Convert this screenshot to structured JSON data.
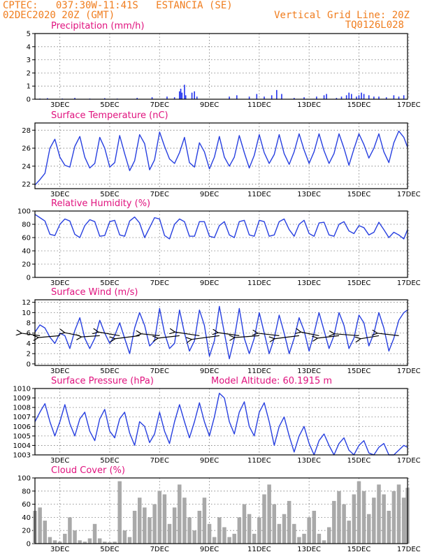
{
  "header": {
    "line1": "CPTEC:   037:30W-11:41S   ESTANCIA (SE)",
    "line2": "02DEC2020 20Z (GMT)",
    "right1": "Vertical Grid Line: 20Z",
    "right2": "TQ0126L028"
  },
  "colors": {
    "header": "#f07d1e",
    "title": "#e0127e",
    "line": "#2840e0",
    "cloud": "#a9a9a9",
    "bar": "#2233ee"
  },
  "chart_data": [
    {
      "type": "bar",
      "id": "precip",
      "title": "Precipitation (mm/h)",
      "ylim": [
        0,
        5
      ],
      "yticks": [
        0,
        1,
        2,
        3,
        4,
        5
      ],
      "xticks": [
        "3DEC",
        "5DEC",
        "7DEC",
        "9DEC",
        "11DEC",
        "13DEC",
        "15DEC",
        "17DEC"
      ],
      "x_unit": "day (DEC 2020)",
      "xlim": [
        2.0,
        16.95
      ],
      "x": [
        2.2,
        2.5,
        3.1,
        3.6,
        4.2,
        4.8,
        5.3,
        6.1,
        6.7,
        7.3,
        7.6,
        7.8,
        7.85,
        7.9,
        8.0,
        8.05,
        8.3,
        8.4,
        8.5,
        9.8,
        10.1,
        10.6,
        10.9,
        11.2,
        11.5,
        11.7,
        11.9,
        12.4,
        12.8,
        13.3,
        13.6,
        13.7,
        14.1,
        14.3,
        14.5,
        14.6,
        14.7,
        14.9,
        15.0,
        15.1,
        15.2,
        15.4,
        15.6,
        15.8,
        16.1,
        16.4,
        16.6,
        16.8
      ],
      "values": [
        0.05,
        0.08,
        0.05,
        0.1,
        0.05,
        0.08,
        0.05,
        0.1,
        0.15,
        0.2,
        0.15,
        0.6,
        0.8,
        0.5,
        1.1,
        0.3,
        0.5,
        0.6,
        0.2,
        0.2,
        0.3,
        0.2,
        0.4,
        0.2,
        0.3,
        0.7,
        0.4,
        0.1,
        0.15,
        0.2,
        0.3,
        0.4,
        0.1,
        0.2,
        0.3,
        0.5,
        0.4,
        0.2,
        0.3,
        0.5,
        0.4,
        0.3,
        0.2,
        0.2,
        0.15,
        0.3,
        0.2,
        0.3
      ]
    },
    {
      "type": "line",
      "id": "temp",
      "title": "Surface Temperature (nC)",
      "ylim": [
        21.5,
        28.8
      ],
      "yticks": [
        22,
        24,
        26,
        28
      ],
      "xticks": [
        "3DEC",
        "5DEC",
        "7DEC",
        "9DEC",
        "11DEC",
        "13DEC",
        "15DEC",
        "17DEC"
      ],
      "x_unit": "day (DEC 2020)",
      "xlim": [
        2.0,
        16.95
      ],
      "x": [
        2.0,
        2.2,
        2.4,
        2.6,
        2.8,
        3.0,
        3.2,
        3.4,
        3.6,
        3.8,
        4.0,
        4.2,
        4.4,
        4.6,
        4.8,
        5.0,
        5.2,
        5.4,
        5.6,
        5.8,
        6.0,
        6.2,
        6.4,
        6.6,
        6.8,
        7.0,
        7.2,
        7.4,
        7.6,
        7.8,
        8.0,
        8.2,
        8.4,
        8.6,
        8.8,
        9.0,
        9.2,
        9.4,
        9.6,
        9.8,
        10.0,
        10.2,
        10.4,
        10.6,
        10.8,
        11.0,
        11.2,
        11.4,
        11.6,
        11.8,
        12.0,
        12.2,
        12.4,
        12.6,
        12.8,
        13.0,
        13.2,
        13.4,
        13.6,
        13.8,
        14.0,
        14.2,
        14.4,
        14.6,
        14.8,
        15.0,
        15.2,
        15.4,
        15.6,
        15.8,
        16.0,
        16.2,
        16.4,
        16.6,
        16.8,
        16.95
      ],
      "values": [
        21.9,
        22.5,
        23.2,
        26.0,
        27.0,
        25.0,
        24.1,
        23.9,
        26.2,
        27.3,
        25.0,
        23.8,
        24.3,
        27.2,
        26.0,
        23.9,
        24.4,
        27.4,
        25.4,
        23.5,
        24.6,
        27.5,
        26.5,
        23.6,
        24.7,
        27.8,
        26.2,
        24.8,
        24.3,
        25.5,
        27.2,
        24.4,
        23.9,
        26.6,
        25.6,
        23.7,
        25.0,
        27.3,
        25.0,
        24.0,
        25.0,
        27.4,
        25.5,
        23.8,
        25.2,
        27.5,
        25.5,
        24.3,
        25.3,
        27.5,
        25.4,
        24.2,
        25.6,
        27.6,
        25.8,
        24.3,
        25.6,
        27.6,
        25.7,
        24.3,
        25.4,
        27.6,
        26.0,
        24.1,
        25.9,
        27.6,
        26.4,
        24.9,
        26.0,
        27.6,
        25.6,
        24.4,
        26.6,
        27.9,
        27.2,
        26.1
      ]
    },
    {
      "type": "line",
      "id": "rh",
      "title": "Relative Humidity (%)",
      "ylim": [
        0,
        100
      ],
      "yticks": [
        0,
        20,
        40,
        60,
        80,
        100
      ],
      "xticks": [
        "3DEC",
        "5DEC",
        "7DEC",
        "9DEC",
        "11DEC",
        "13DEC",
        "15DEC",
        "17DEC"
      ],
      "x_unit": "day (DEC 2020)",
      "xlim": [
        2.0,
        16.95
      ],
      "x": [
        2.0,
        2.2,
        2.4,
        2.6,
        2.8,
        3.0,
        3.2,
        3.4,
        3.6,
        3.8,
        4.0,
        4.2,
        4.4,
        4.6,
        4.8,
        5.0,
        5.2,
        5.4,
        5.6,
        5.8,
        6.0,
        6.2,
        6.4,
        6.6,
        6.8,
        7.0,
        7.2,
        7.4,
        7.6,
        7.8,
        8.0,
        8.2,
        8.4,
        8.6,
        8.8,
        9.0,
        9.2,
        9.4,
        9.6,
        9.8,
        10.0,
        10.2,
        10.4,
        10.6,
        10.8,
        11.0,
        11.2,
        11.4,
        11.6,
        11.8,
        12.0,
        12.2,
        12.4,
        12.6,
        12.8,
        13.0,
        13.2,
        13.4,
        13.6,
        13.8,
        14.0,
        14.2,
        14.4,
        14.6,
        14.8,
        15.0,
        15.2,
        15.4,
        15.6,
        15.8,
        16.0,
        16.2,
        16.4,
        16.6,
        16.8,
        16.95
      ],
      "values": [
        95,
        90,
        85,
        65,
        63,
        80,
        88,
        85,
        65,
        60,
        78,
        87,
        84,
        62,
        63,
        84,
        86,
        64,
        62,
        85,
        91,
        82,
        60,
        75,
        90,
        88,
        63,
        58,
        80,
        88,
        84,
        62,
        62,
        84,
        84,
        62,
        60,
        78,
        84,
        64,
        60,
        84,
        86,
        64,
        62,
        86,
        84,
        62,
        64,
        84,
        88,
        72,
        62,
        80,
        86,
        66,
        62,
        82,
        83,
        64,
        62,
        80,
        84,
        70,
        66,
        78,
        75,
        64,
        68,
        83,
        72,
        60,
        68,
        64,
        58,
        72
      ]
    },
    {
      "type": "line",
      "id": "wind",
      "title": "Surface Wind (m/s)",
      "ylim": [
        -0.3,
        12.5
      ],
      "yticks": [
        0,
        2,
        4,
        6,
        8,
        10,
        12
      ],
      "xticks": [
        "3DEC",
        "5DEC",
        "7DEC",
        "9DEC",
        "11DEC",
        "13DEC",
        "15DEC",
        "17DEC"
      ],
      "x_unit": "day (DEC 2020)",
      "xlim": [
        2.0,
        16.95
      ],
      "x": [
        2.0,
        2.2,
        2.4,
        2.6,
        2.8,
        3.0,
        3.2,
        3.4,
        3.6,
        3.8,
        4.0,
        4.2,
        4.4,
        4.6,
        4.8,
        5.0,
        5.2,
        5.4,
        5.6,
        5.8,
        6.0,
        6.2,
        6.4,
        6.6,
        6.8,
        7.0,
        7.2,
        7.4,
        7.6,
        7.8,
        8.0,
        8.2,
        8.4,
        8.6,
        8.8,
        9.0,
        9.2,
        9.4,
        9.6,
        9.8,
        10.0,
        10.2,
        10.4,
        10.6,
        10.8,
        11.0,
        11.2,
        11.4,
        11.6,
        11.8,
        12.0,
        12.2,
        12.4,
        12.6,
        12.8,
        13.0,
        13.2,
        13.4,
        13.6,
        13.8,
        14.0,
        14.2,
        14.4,
        14.6,
        14.8,
        15.0,
        15.2,
        15.4,
        15.6,
        15.8,
        16.0,
        16.2,
        16.4,
        16.6,
        16.8,
        16.95
      ],
      "values": [
        6.2,
        7.6,
        7.0,
        5.2,
        4.0,
        6.0,
        5.5,
        3.0,
        6.5,
        9.0,
        5.0,
        3.0,
        5.0,
        8.5,
        6.0,
        4.0,
        5.5,
        8.0,
        5.0,
        2.0,
        7.0,
        10.0,
        7.5,
        3.5,
        4.5,
        10.8,
        6.0,
        3.0,
        4.0,
        10.5,
        6.0,
        2.5,
        4.5,
        10.5,
        7.5,
        1.5,
        4.5,
        11.2,
        6.0,
        1.0,
        5.0,
        10.8,
        5.0,
        2.0,
        5.0,
        10.0,
        6.0,
        2.0,
        5.0,
        9.5,
        6.0,
        2.0,
        5.0,
        9.0,
        6.5,
        2.5,
        6.0,
        10.0,
        6.5,
        3.0,
        5.5,
        10.0,
        7.5,
        3.0,
        5.0,
        9.5,
        8.0,
        3.5,
        6.0,
        10.0,
        7.0,
        2.5,
        5.0,
        8.5,
        10.0,
        10.5
      ]
    },
    {
      "type": "line",
      "id": "pres",
      "title": "Surface Pressure (hPa)",
      "annotation": "Model Altitude: 60.1915 m",
      "ylim": [
        1003,
        1010
      ],
      "yticks": [
        1003,
        1004,
        1005,
        1006,
        1007,
        1008,
        1009,
        1010
      ],
      "xticks": [
        "3DEC",
        "5DEC",
        "7DEC",
        "9DEC",
        "11DEC",
        "13DEC",
        "15DEC",
        "17DEC"
      ],
      "x_unit": "day (DEC 2020)",
      "xlim": [
        2.0,
        16.95
      ],
      "x": [
        2.0,
        2.2,
        2.4,
        2.6,
        2.8,
        3.0,
        3.2,
        3.4,
        3.6,
        3.8,
        4.0,
        4.2,
        4.4,
        4.6,
        4.8,
        5.0,
        5.2,
        5.4,
        5.6,
        5.8,
        6.0,
        6.2,
        6.4,
        6.6,
        6.8,
        7.0,
        7.2,
        7.4,
        7.6,
        7.8,
        8.0,
        8.2,
        8.4,
        8.6,
        8.8,
        9.0,
        9.2,
        9.4,
        9.6,
        9.8,
        10.0,
        10.2,
        10.4,
        10.6,
        10.8,
        11.0,
        11.2,
        11.4,
        11.6,
        11.8,
        12.0,
        12.2,
        12.4,
        12.6,
        12.8,
        13.0,
        13.2,
        13.4,
        13.6,
        13.8,
        14.0,
        14.2,
        14.4,
        14.6,
        14.8,
        15.0,
        15.2,
        15.4,
        15.6,
        15.8,
        16.0,
        16.2,
        16.4,
        16.6,
        16.8,
        16.95
      ],
      "values": [
        1006.5,
        1007.5,
        1008.4,
        1006.5,
        1005.0,
        1006.5,
        1008.3,
        1006.3,
        1005.0,
        1006.8,
        1007.5,
        1005.5,
        1004.5,
        1006.8,
        1007.8,
        1005.5,
        1004.8,
        1006.8,
        1007.5,
        1005.3,
        1004.0,
        1006.5,
        1006.0,
        1004.3,
        1005.2,
        1007.5,
        1005.5,
        1004.2,
        1006.5,
        1008.3,
        1006.5,
        1004.8,
        1006.5,
        1008.5,
        1006.5,
        1005.0,
        1007.0,
        1009.5,
        1009.0,
        1006.5,
        1005.2,
        1007.5,
        1008.6,
        1006.0,
        1005.0,
        1007.5,
        1008.5,
        1006.5,
        1004.0,
        1006.0,
        1007.0,
        1005.0,
        1003.3,
        1005.0,
        1006.0,
        1004.2,
        1003.0,
        1004.5,
        1005.2,
        1004.0,
        1003.0,
        1004.2,
        1004.8,
        1003.5,
        1003.0,
        1004.0,
        1004.5,
        1003.2,
        1003.0,
        1003.8,
        1004.2,
        1003.0,
        1003.0,
        1003.5,
        1004.0,
        1003.8
      ]
    },
    {
      "type": "bar",
      "id": "cloud",
      "title": "Cloud Cover (%)",
      "ylim": [
        0,
        100
      ],
      "yticks": [
        0,
        20,
        40,
        60,
        80,
        100
      ],
      "xticks": [
        "3DEC",
        "5DEC",
        "7DEC",
        "9DEC",
        "11DEC",
        "13DEC",
        "15DEC",
        "17DEC"
      ],
      "x_unit": "day (DEC 2020)",
      "xlim": [
        2.0,
        16.95
      ],
      "x": [
        2.0,
        2.2,
        2.4,
        2.6,
        2.8,
        3.0,
        3.2,
        3.4,
        3.6,
        3.8,
        4.0,
        4.2,
        4.4,
        4.6,
        4.8,
        5.0,
        5.2,
        5.4,
        5.6,
        5.8,
        6.0,
        6.2,
        6.4,
        6.6,
        6.8,
        7.0,
        7.2,
        7.4,
        7.6,
        7.8,
        8.0,
        8.2,
        8.4,
        8.6,
        8.8,
        9.0,
        9.2,
        9.4,
        9.6,
        9.8,
        10.0,
        10.2,
        10.4,
        10.6,
        10.8,
        11.0,
        11.2,
        11.4,
        11.6,
        11.8,
        12.0,
        12.2,
        12.4,
        12.6,
        12.8,
        13.0,
        13.2,
        13.4,
        13.6,
        13.8,
        14.0,
        14.2,
        14.4,
        14.6,
        14.8,
        15.0,
        15.2,
        15.4,
        15.6,
        15.8,
        16.0,
        16.2,
        16.4,
        16.6,
        16.8,
        16.95
      ],
      "values": [
        50,
        55,
        35,
        10,
        5,
        3,
        15,
        40,
        20,
        5,
        3,
        8,
        30,
        8,
        3,
        2,
        3,
        95,
        20,
        10,
        50,
        70,
        55,
        40,
        60,
        80,
        75,
        30,
        55,
        90,
        70,
        40,
        20,
        50,
        70,
        30,
        10,
        40,
        25,
        10,
        15,
        40,
        60,
        45,
        15,
        40,
        75,
        90,
        60,
        30,
        45,
        65,
        30,
        10,
        15,
        40,
        50,
        15,
        5,
        25,
        65,
        80,
        60,
        35,
        75,
        95,
        80,
        45,
        70,
        90,
        75,
        50,
        80,
        90,
        70,
        85
      ]
    }
  ],
  "wind_vectors": {
    "x": [
      2.2,
      3.0,
      3.8,
      4.6,
      5.4,
      6.2,
      7.0,
      7.8,
      8.6,
      9.4,
      10.2,
      11.0,
      11.8,
      12.6,
      13.4,
      14.2,
      15.0,
      15.8,
      16.6
    ],
    "u": [
      -3.0,
      -3.5,
      -2.5,
      -3.0,
      -3.5,
      -4.0,
      -3.0,
      -3.5,
      -4.0,
      -4.5,
      -3.5,
      -4.0,
      -3.5,
      -4.0,
      -3.0,
      -3.5,
      -4.0,
      -3.0,
      -3.5
    ],
    "v": [
      0.4,
      -0.3,
      0.5,
      -0.2,
      0.6,
      -0.5,
      0.3,
      -0.4,
      0.6,
      -0.6,
      0.5,
      -0.3,
      0.4,
      -0.5,
      0.6,
      -0.4,
      0.3,
      -0.5,
      0.4
    ]
  }
}
